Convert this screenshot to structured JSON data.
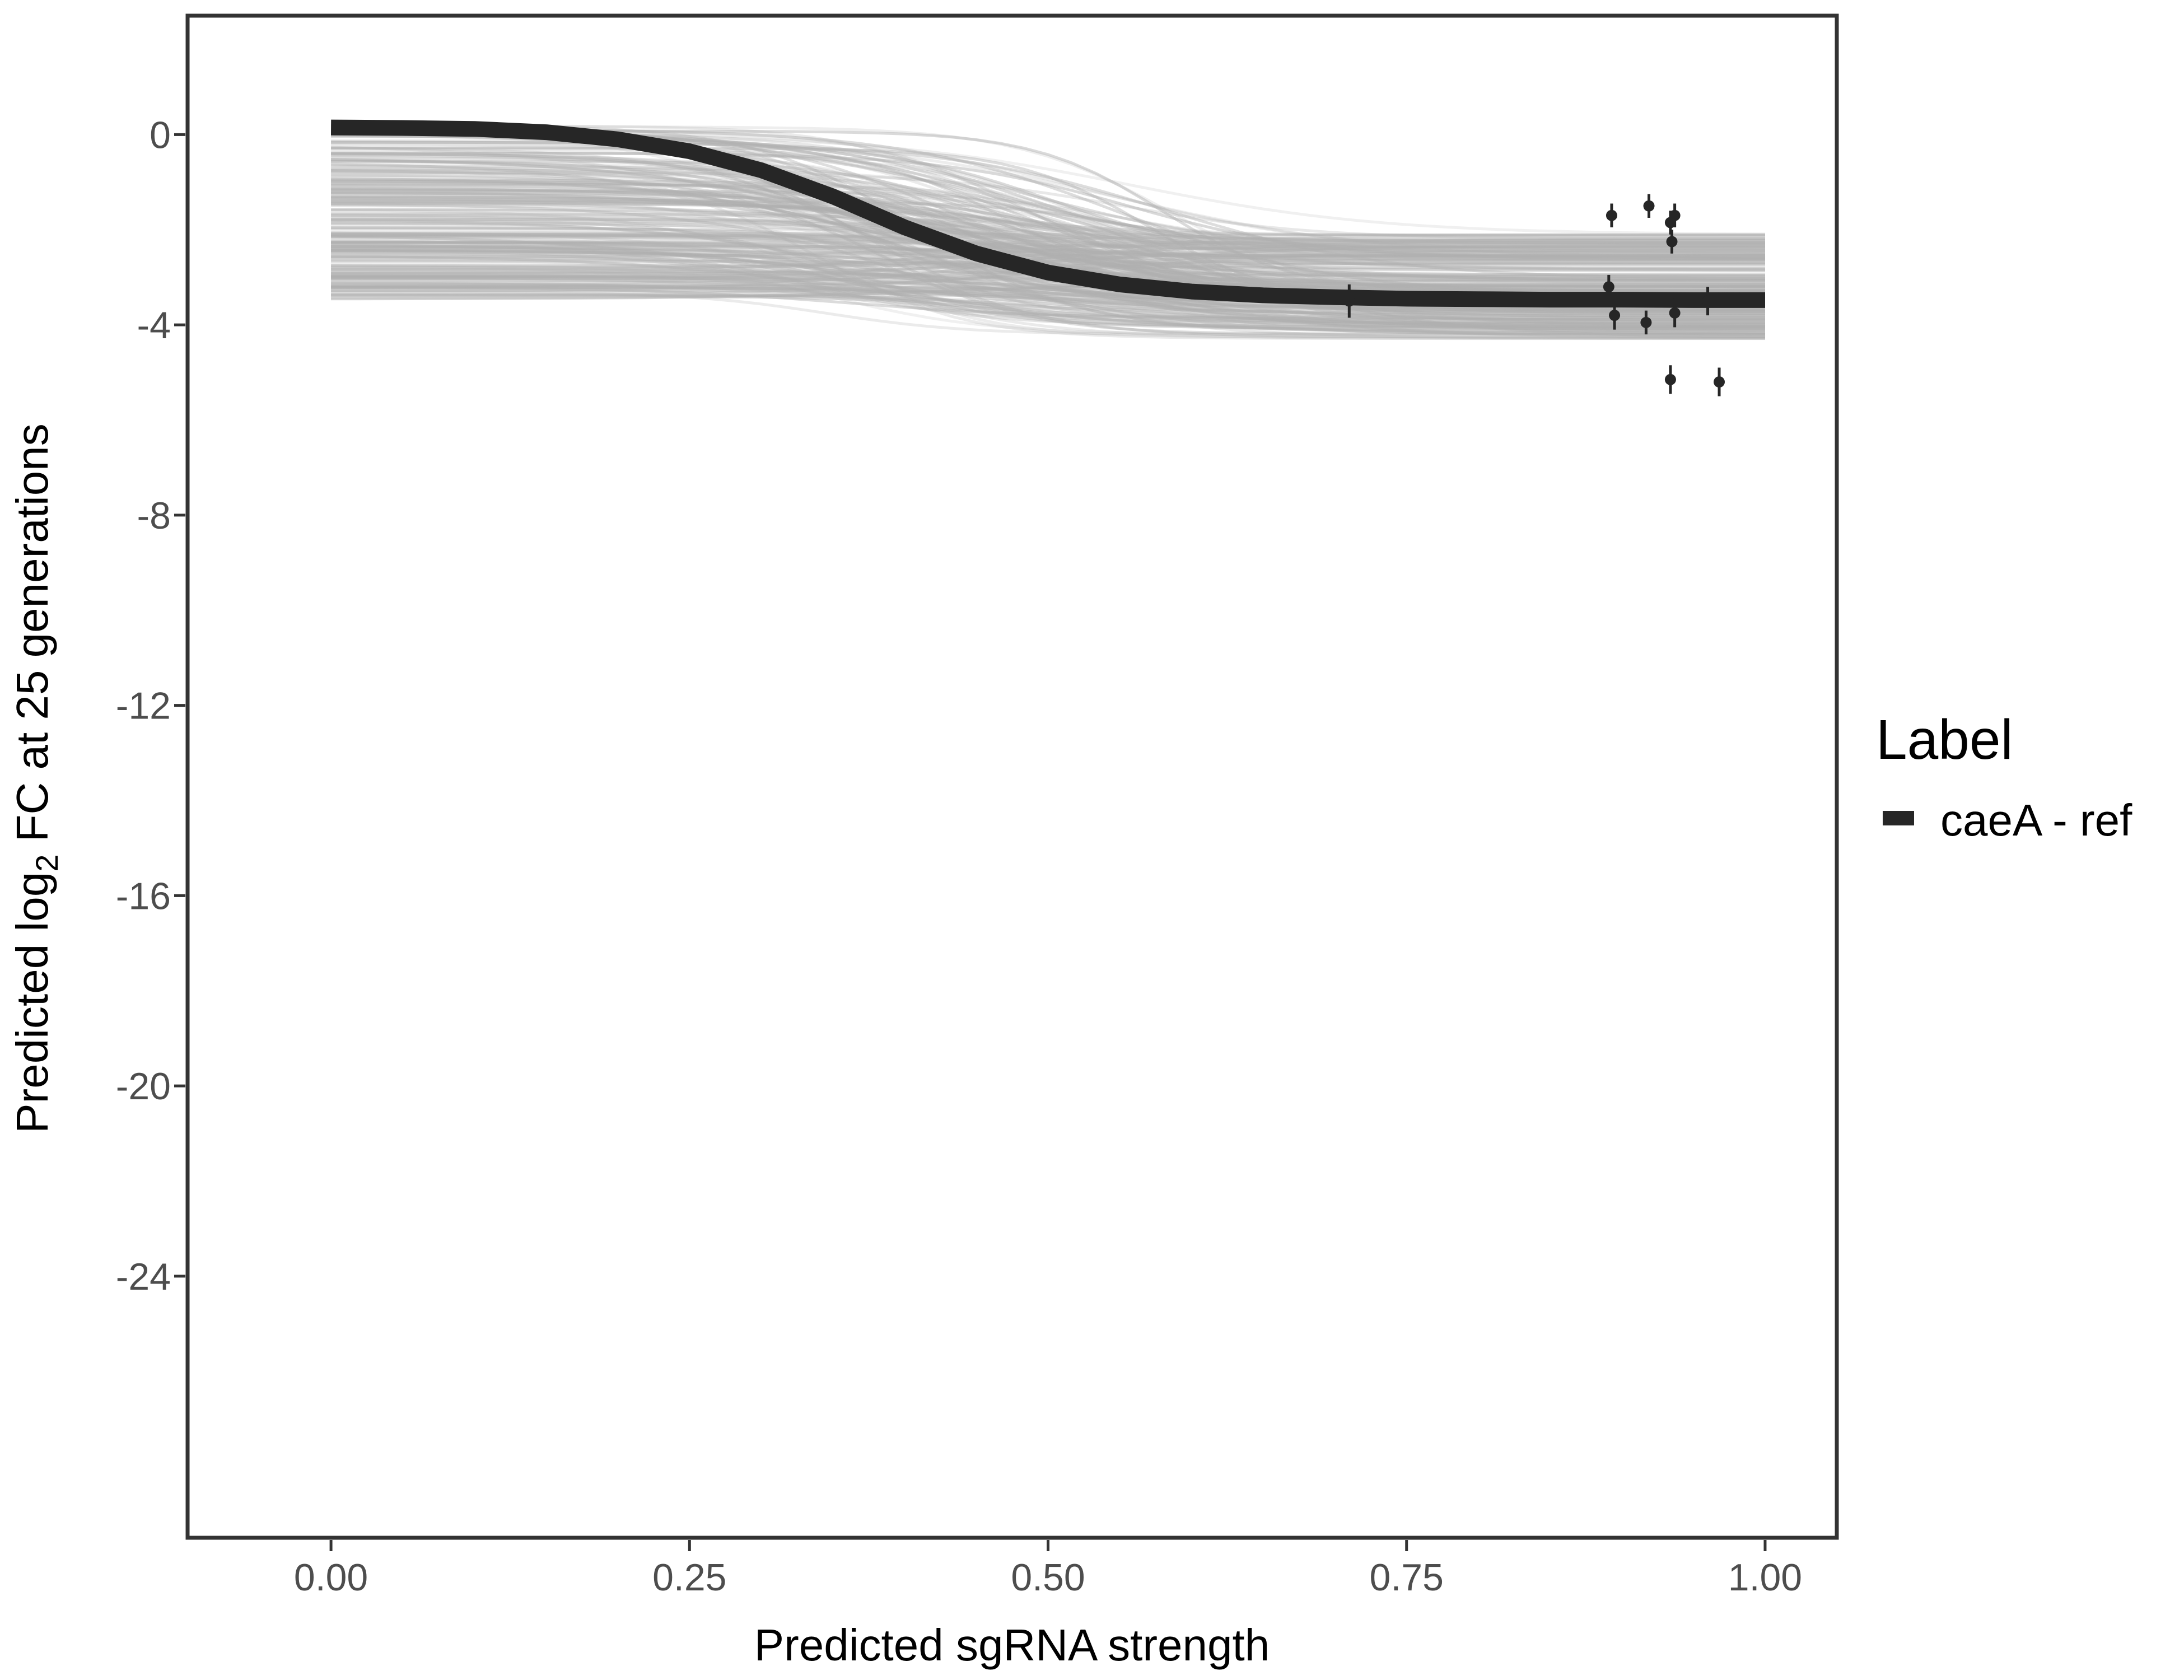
{
  "chart_data": {
    "type": "line",
    "xlabel": "Predicted sgRNA strength",
    "ylabel_parts": {
      "prefix": "Predicted  log",
      "subscript": "2",
      "suffix": " FC at 25 generations"
    },
    "xlim": [
      -0.1,
      1.05
    ],
    "ylim": [
      -29.5,
      2.5
    ],
    "x_ticks": [
      0.0,
      0.25,
      0.5,
      0.75,
      1.0
    ],
    "x_tick_labels": [
      "0.00",
      "0.25",
      "0.50",
      "0.75",
      "1.00"
    ],
    "y_ticks": [
      0,
      -4,
      -8,
      -12,
      -16,
      -20,
      -24
    ],
    "y_tick_labels": [
      "0",
      "-4",
      "-8",
      "-12",
      "-16",
      "-20",
      "-24"
    ],
    "grid": false,
    "legend": {
      "title": "Label",
      "position": "right",
      "entries": [
        {
          "label": "caeA - ref",
          "color": "#262626"
        }
      ]
    },
    "series": [
      {
        "name": "caeA - ref",
        "kind": "fitted-curve",
        "color": "#262626",
        "x": [
          0.0,
          0.05,
          0.1,
          0.15,
          0.2,
          0.25,
          0.3,
          0.35,
          0.4,
          0.45,
          0.5,
          0.55,
          0.6,
          0.65,
          0.7,
          0.75,
          0.8,
          0.85,
          0.9,
          0.95,
          1.0
        ],
        "y": [
          0.15,
          0.14,
          0.12,
          0.05,
          -0.1,
          -0.35,
          -0.75,
          -1.3,
          -1.95,
          -2.5,
          -2.9,
          -3.15,
          -3.3,
          -3.38,
          -3.42,
          -3.45,
          -3.46,
          -3.47,
          -3.47,
          -3.48,
          -3.48
        ]
      },
      {
        "name": "",
        "kind": "posterior-draw-band",
        "color": "#b0b0b0",
        "x": [
          0.0,
          0.25,
          0.5,
          0.75,
          1.0
        ],
        "y_upper": [
          0.2,
          0.2,
          0.1,
          -1.6,
          -2.0
        ],
        "y_lower": [
          -3.6,
          -3.65,
          -3.75,
          -4.2,
          -4.4
        ]
      },
      {
        "name": "",
        "kind": "observed-points",
        "color": "#262626",
        "points": [
          {
            "x": 0.71,
            "y": -3.5,
            "err": 0.35
          },
          {
            "x": 0.893,
            "y": -1.7,
            "err": 0.25
          },
          {
            "x": 0.891,
            "y": -3.2,
            "err": 0.25
          },
          {
            "x": 0.895,
            "y": -3.8,
            "err": 0.3
          },
          {
            "x": 0.919,
            "y": -1.5,
            "err": 0.25
          },
          {
            "x": 0.917,
            "y": -3.95,
            "err": 0.25
          },
          {
            "x": 0.934,
            "y": -1.85,
            "err": 0.25
          },
          {
            "x": 0.935,
            "y": -2.25,
            "err": 0.25
          },
          {
            "x": 0.937,
            "y": -1.7,
            "err": 0.25
          },
          {
            "x": 0.937,
            "y": -3.75,
            "err": 0.3
          },
          {
            "x": 0.934,
            "y": -5.15,
            "err": 0.3
          },
          {
            "x": 0.96,
            "y": -3.5,
            "err": 0.3
          },
          {
            "x": 0.968,
            "y": -5.2,
            "err": 0.3
          }
        ]
      }
    ]
  }
}
